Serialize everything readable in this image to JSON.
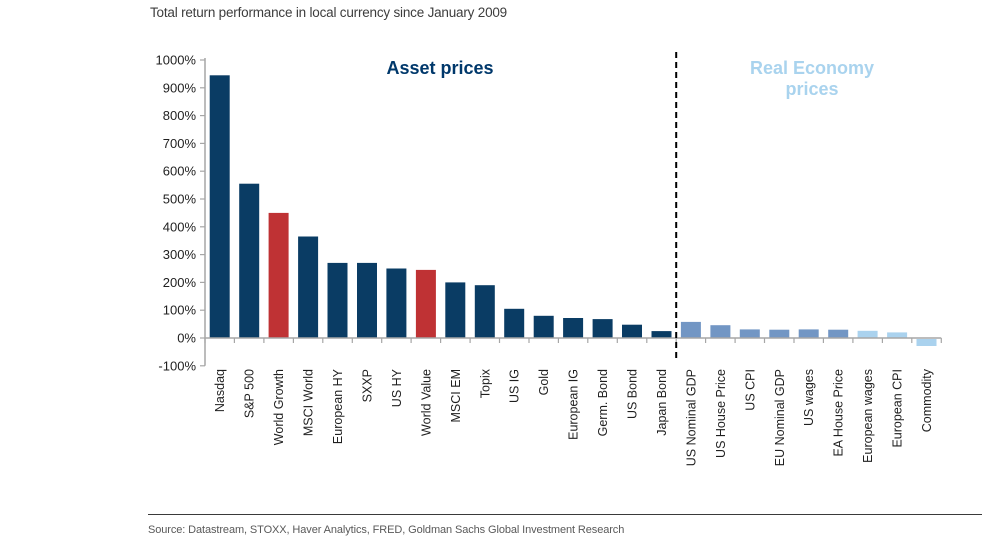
{
  "page": {
    "title": "Total return performance in local currency since January 2009",
    "source": "Source: Datastream, STOXX, Haver Analytics, FRED, Goldman Sachs Global Investment Research"
  },
  "colors": {
    "navy": "#0a3c64",
    "red": "#bf3234",
    "blue": "#7296c4",
    "light_blue": "#aad2ee",
    "asset_title": "#00386b",
    "real_title": "#a9d3ee",
    "axis": "#a6a6a6",
    "label_text": "#1f1f1f",
    "source_text": "#595959",
    "divider": "#000000"
  },
  "chart_data": {
    "type": "bar",
    "title": "Total return performance in local currency since January 2009",
    "xlabel": "",
    "ylabel": "",
    "ylim": [
      -100,
      1000
    ],
    "ytick_step": 100,
    "ytick_suffix": "%",
    "grid": false,
    "legend": "none",
    "sections": [
      {
        "label": "Asset prices",
        "lines": [
          "Asset prices"
        ],
        "color_key": "asset_title"
      },
      {
        "label": "Real Economy prices",
        "lines": [
          "Real Economy",
          "prices"
        ],
        "color_key": "real_title"
      }
    ],
    "divider_after_category": "Japan Bond",
    "bars": [
      {
        "label": "Nasdaq",
        "value": 945,
        "color_key": "navy"
      },
      {
        "label": "S&P 500",
        "value": 555,
        "color_key": "navy"
      },
      {
        "label": "World Growth",
        "value": 450,
        "color_key": "red"
      },
      {
        "label": "MSCI World",
        "value": 365,
        "color_key": "navy"
      },
      {
        "label": "European HY",
        "value": 270,
        "color_key": "navy"
      },
      {
        "label": "SXXP",
        "value": 270,
        "color_key": "navy"
      },
      {
        "label": "US HY",
        "value": 250,
        "color_key": "navy"
      },
      {
        "label": "World Value",
        "value": 245,
        "color_key": "red"
      },
      {
        "label": "MSCI EM",
        "value": 200,
        "color_key": "navy"
      },
      {
        "label": "Topix",
        "value": 190,
        "color_key": "navy"
      },
      {
        "label": "US IG",
        "value": 105,
        "color_key": "navy"
      },
      {
        "label": "Gold",
        "value": 80,
        "color_key": "navy"
      },
      {
        "label": "European IG",
        "value": 72,
        "color_key": "navy"
      },
      {
        "label": "Germ. Bond",
        "value": 68,
        "color_key": "navy"
      },
      {
        "label": "US Bond",
        "value": 48,
        "color_key": "navy"
      },
      {
        "label": "Japan Bond",
        "value": 25,
        "color_key": "navy"
      },
      {
        "label": "US Nominal GDP",
        "value": 58,
        "color_key": "blue"
      },
      {
        "label": "US House Price",
        "value": 46,
        "color_key": "blue"
      },
      {
        "label": "US CPI",
        "value": 31,
        "color_key": "blue"
      },
      {
        "label": "EU Nominal GDP",
        "value": 30,
        "color_key": "blue"
      },
      {
        "label": "US wages",
        "value": 31,
        "color_key": "blue"
      },
      {
        "label": "EA House Price",
        "value": 30,
        "color_key": "blue"
      },
      {
        "label": "European wages",
        "value": 26,
        "color_key": "light_blue"
      },
      {
        "label": "European CPI",
        "value": 20,
        "color_key": "light_blue"
      },
      {
        "label": "Commodity",
        "value": -25,
        "color_key": "light_blue"
      }
    ]
  }
}
